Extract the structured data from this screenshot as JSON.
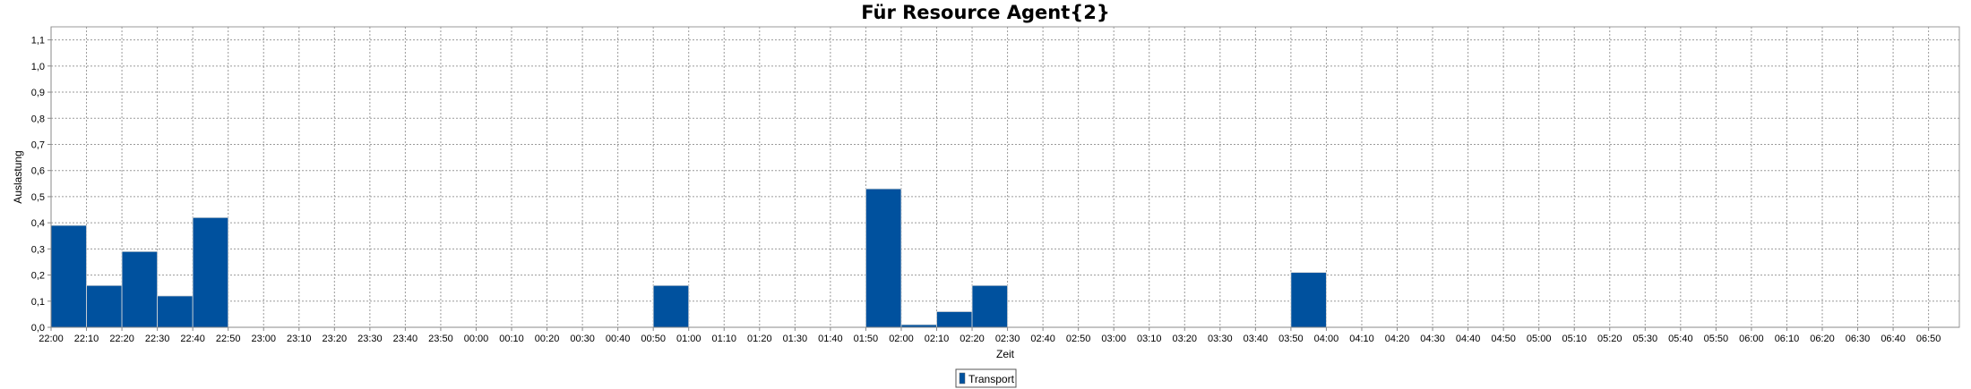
{
  "chart_data": {
    "type": "bar",
    "title": "Für Resource Agent{2}",
    "xlabel": "Zeit",
    "ylabel": "Auslastung",
    "ylim": [
      0,
      1.15
    ],
    "yticks": [
      "0,0",
      "0,1",
      "0,2",
      "0,3",
      "0,4",
      "0,5",
      "0,6",
      "0,7",
      "0,8",
      "0,9",
      "1,0",
      "1,1"
    ],
    "grid": true,
    "legend_position": "bottom-center",
    "color": "#00519e",
    "categories": [
      "22:00",
      "22:10",
      "22:20",
      "22:30",
      "22:40",
      "22:50",
      "23:00",
      "23:10",
      "23:20",
      "23:30",
      "23:40",
      "23:50",
      "00:00",
      "00:10",
      "00:20",
      "00:30",
      "00:40",
      "00:50",
      "01:00",
      "01:10",
      "01:20",
      "01:30",
      "01:40",
      "01:50",
      "02:00",
      "02:10",
      "02:20",
      "02:30",
      "02:40",
      "02:50",
      "03:00",
      "03:10",
      "03:20",
      "03:30",
      "03:40",
      "03:50",
      "04:00",
      "04:10",
      "04:20",
      "04:30",
      "04:40",
      "04:50",
      "05:00",
      "05:10",
      "05:20",
      "05:30",
      "05:40",
      "05:50",
      "06:00",
      "06:10",
      "06:20",
      "06:30",
      "06:40",
      "06:50"
    ],
    "series": [
      {
        "name": "Transport",
        "values": [
          0.39,
          0.16,
          0.29,
          0.12,
          0.42,
          0,
          0,
          0,
          0,
          0,
          0,
          0,
          0,
          0,
          0,
          0,
          0,
          0.16,
          0,
          0,
          0,
          0,
          0,
          0.53,
          0.01,
          0.06,
          0.16,
          0,
          0,
          0,
          0,
          0,
          0,
          0,
          0,
          0.21,
          0,
          0,
          0,
          0,
          0,
          0,
          0,
          0,
          0,
          0,
          0,
          0,
          0,
          0,
          0,
          0,
          0,
          0
        ]
      }
    ]
  }
}
